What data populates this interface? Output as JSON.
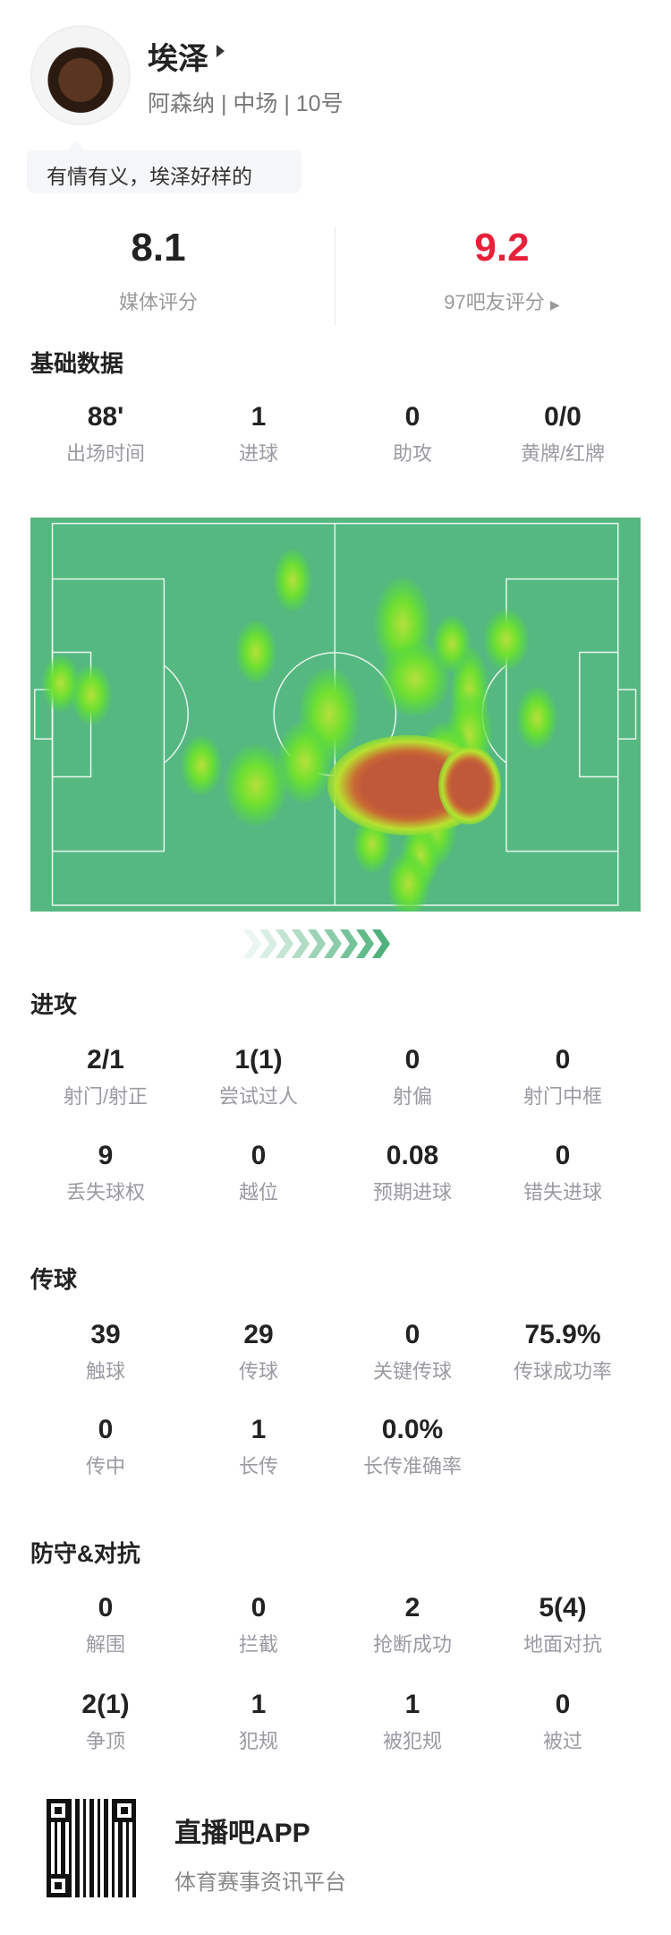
{
  "player": {
    "name": "埃泽",
    "team": "阿森纳",
    "position": "中场",
    "number": "10号",
    "subtitle": "阿森纳 | 中场 | 10号",
    "comment": "有情有义，埃泽好样的"
  },
  "ratings": {
    "media": {
      "value": "8.1",
      "label": "媒体评分"
    },
    "fans": {
      "value": "9.2",
      "label": "97吧友评分",
      "color": "#e8203a"
    }
  },
  "basic": {
    "title": "基础数据",
    "items": [
      {
        "value": "88'",
        "label": "出场时间"
      },
      {
        "value": "1",
        "label": "进球"
      },
      {
        "value": "0",
        "label": "助攻"
      },
      {
        "value": "0/0",
        "label": "黄牌/红牌"
      }
    ]
  },
  "heatmap": {
    "pitch_color": "#55b880",
    "attack_direction": "right"
  },
  "attack": {
    "title": "进攻",
    "items": [
      {
        "value": "2/1",
        "label": "射门/射正"
      },
      {
        "value": "1(1)",
        "label": "尝试过人"
      },
      {
        "value": "0",
        "label": "射偏"
      },
      {
        "value": "0",
        "label": "射门中框"
      },
      {
        "value": "9",
        "label": "丢失球权"
      },
      {
        "value": "0",
        "label": "越位"
      },
      {
        "value": "0.08",
        "label": "预期进球"
      },
      {
        "value": "0",
        "label": "错失进球"
      }
    ]
  },
  "passing": {
    "title": "传球",
    "items": [
      {
        "value": "39",
        "label": "触球"
      },
      {
        "value": "29",
        "label": "传球"
      },
      {
        "value": "0",
        "label": "关键传球"
      },
      {
        "value": "75.9%",
        "label": "传球成功率"
      },
      {
        "value": "0",
        "label": "传中"
      },
      {
        "value": "1",
        "label": "长传"
      },
      {
        "value": "0.0%",
        "label": "长传准确率"
      }
    ]
  },
  "defense": {
    "title": "防守&对抗",
    "items": [
      {
        "value": "0",
        "label": "解围"
      },
      {
        "value": "0",
        "label": "拦截"
      },
      {
        "value": "2",
        "label": "抢断成功"
      },
      {
        "value": "5(4)",
        "label": "地面对抗"
      },
      {
        "value": "2(1)",
        "label": "争顶"
      },
      {
        "value": "1",
        "label": "犯规"
      },
      {
        "value": "1",
        "label": "被犯规"
      },
      {
        "value": "0",
        "label": "被过"
      }
    ]
  },
  "footer": {
    "app": "直播吧APP",
    "tagline": "体育赛事资讯平台"
  }
}
